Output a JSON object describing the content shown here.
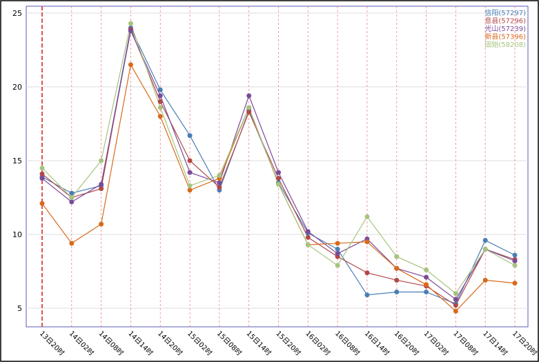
{
  "chart_data": {
    "type": "line",
    "title": "",
    "xlabel": "",
    "ylabel": "",
    "ylim": [
      4,
      25.5
    ],
    "yticks": [
      5,
      10,
      15,
      20,
      25
    ],
    "grid": true,
    "legend_position": "top-right",
    "categories": [
      "13日20时",
      "14日02时",
      "14日08时",
      "14日14时",
      "14日20时",
      "15日02时",
      "15日08时",
      "15日14时",
      "15日20时",
      "16日02时",
      "16日08时",
      "16日14时",
      "16日20时",
      "17日02时",
      "17日08时",
      "17日14时",
      "17日20时"
    ],
    "series": [
      {
        "name": "信阳(57297)",
        "color": "#4a7eb5",
        "values": [
          13.9,
          12.8,
          13.3,
          24.0,
          19.8,
          16.7,
          13.0,
          18.4,
          13.5,
          10.1,
          9.0,
          5.9,
          6.1,
          6.1,
          5.3,
          9.6,
          8.6
        ]
      },
      {
        "name": "息县(57296)",
        "color": "#b24848",
        "values": [
          14.1,
          12.5,
          13.1,
          23.9,
          19.0,
          15.0,
          13.2,
          18.3,
          13.8,
          9.8,
          8.5,
          7.4,
          6.9,
          6.5,
          5.2,
          9.0,
          8.3
        ]
      },
      {
        "name": "光山(57239)",
        "color": "#7a4b9a",
        "values": [
          13.8,
          12.2,
          13.4,
          23.8,
          19.4,
          14.2,
          13.5,
          19.4,
          14.2,
          10.2,
          8.7,
          9.7,
          7.7,
          7.1,
          5.6,
          9.0,
          8.2
        ]
      },
      {
        "name": "新县(57396)",
        "color": "#d9691c",
        "values": [
          12.1,
          9.4,
          10.7,
          21.5,
          18.0,
          13.0,
          13.8,
          18.6,
          13.4,
          9.3,
          9.4,
          9.5,
          7.7,
          6.6,
          4.8,
          6.9,
          6.7
        ]
      },
      {
        "name": "固始(58208)",
        "color": "#a6c47e",
        "values": [
          14.5,
          12.5,
          15.0,
          24.3,
          18.6,
          13.3,
          14.0,
          18.6,
          13.4,
          9.3,
          7.9,
          11.2,
          8.5,
          7.6,
          6.0,
          9.0,
          7.9
        ]
      }
    ]
  }
}
